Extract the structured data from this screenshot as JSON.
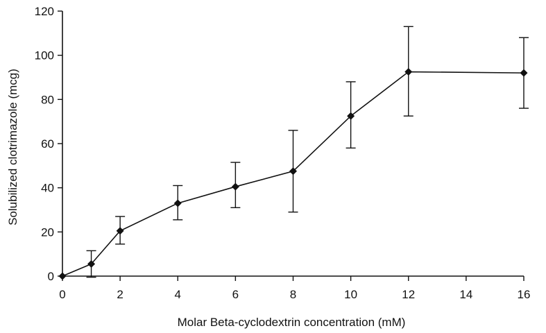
{
  "chart_data": {
    "type": "line",
    "title": "",
    "xlabel": "Molar Beta-cyclodextrin concentration (mM)",
    "ylabel": "Solubilized clotrimazole (mcg)",
    "xlim": [
      0,
      16
    ],
    "ylim": [
      0,
      120
    ],
    "xticks": [
      0,
      2,
      4,
      6,
      8,
      10,
      12,
      14,
      16
    ],
    "yticks": [
      0,
      20,
      40,
      60,
      80,
      100,
      120
    ],
    "grid": false,
    "marker": "diamond",
    "series": [
      {
        "x": [
          0,
          1,
          2,
          4,
          6,
          8,
          10,
          12,
          16
        ],
        "y": [
          0,
          5.5,
          20.5,
          33,
          40.5,
          47.5,
          72.5,
          92.5,
          92
        ],
        "error_low": [
          0,
          -0.5,
          14.5,
          25.5,
          31,
          29,
          58,
          72.5,
          76
        ],
        "error_high": [
          0,
          11.5,
          27,
          41,
          51.5,
          66,
          88,
          113,
          108
        ]
      }
    ]
  }
}
